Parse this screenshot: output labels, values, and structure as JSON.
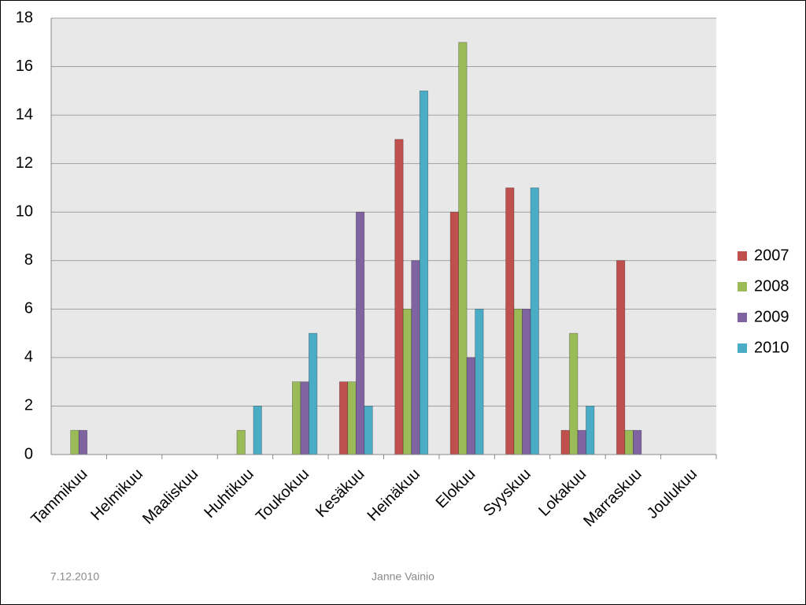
{
  "chart_data": {
    "type": "bar",
    "categories": [
      "Tammikuu",
      "Helmikuu",
      "Maaliskuu",
      "Huhtikuu",
      "Toukokuu",
      "Kesäkuu",
      "Heinäkuu",
      "Elokuu",
      "Syyskuu",
      "Lokakuu",
      "Marraskuu",
      "Joulukuu"
    ],
    "series": [
      {
        "name": "2007",
        "color": "#c0504d",
        "values": [
          0,
          0,
          0,
          0,
          0,
          3,
          13,
          10,
          11,
          1,
          8,
          0
        ]
      },
      {
        "name": "2008",
        "color": "#9bbb59",
        "values": [
          1,
          0,
          0,
          1,
          3,
          3,
          6,
          17,
          6,
          5,
          1,
          0
        ]
      },
      {
        "name": "2009",
        "color": "#8064a2",
        "values": [
          1,
          0,
          0,
          0,
          3,
          10,
          8,
          4,
          6,
          1,
          1,
          0
        ]
      },
      {
        "name": "2010",
        "color": "#4bacc6",
        "values": [
          0,
          0,
          0,
          2,
          5,
          2,
          15,
          6,
          11,
          2,
          0,
          0
        ]
      }
    ],
    "ylim": [
      0,
      18
    ],
    "yticks": [
      0,
      2,
      4,
      6,
      8,
      10,
      12,
      14,
      16,
      18
    ],
    "grid": true,
    "legend": "right"
  },
  "footer": {
    "date": "7.12.2010",
    "author": "Janne Vainio"
  }
}
